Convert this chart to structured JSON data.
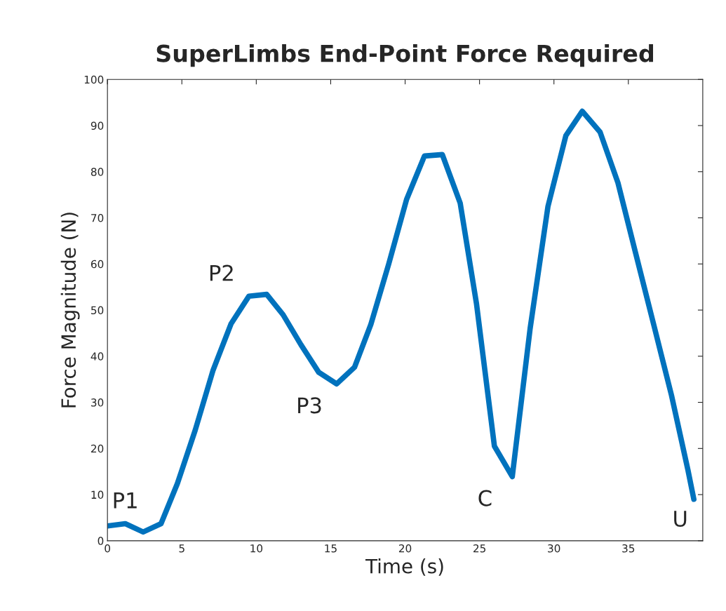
{
  "chart_data": {
    "type": "line",
    "title": "SuperLimbs End-Point Force Required",
    "xlabel": "Time (s)",
    "ylabel": "Force Magnitude (N)",
    "x": [
      0,
      1.2,
      2.4,
      3.6,
      4.7,
      5.9,
      7.1,
      8.3,
      9.5,
      10.7,
      11.8,
      13,
      14.2,
      15.4,
      16.6,
      17.7,
      18.9,
      20.1,
      21.3,
      22.5,
      23.7,
      24.8,
      26,
      27.2,
      28.4,
      29.6,
      30.8,
      31.9,
      33.1,
      34.3,
      35.5,
      36.7,
      37.9,
      39,
      39.4
    ],
    "series": [
      {
        "color": "#0072bd",
        "values": [
          3.2,
          3.7,
          1.9,
          3.7,
          12.4,
          24,
          37,
          47,
          53,
          53.4,
          49,
          42.5,
          36.5,
          34,
          37.6,
          46.9,
          60,
          74,
          83.4,
          83.7,
          73.2,
          51.3,
          20.5,
          13.9,
          46,
          72.5,
          87.8,
          93.1,
          88.6,
          77.6,
          62.2,
          46.9,
          31.5,
          15.4,
          9
        ]
      }
    ],
    "xlim": [
      0,
      40
    ],
    "xticks": [
      0,
      5,
      10,
      15,
      20,
      25,
      30,
      35
    ],
    "ylim": [
      0,
      100
    ],
    "yticks": [
      0,
      10,
      20,
      30,
      40,
      50,
      60,
      70,
      80,
      90,
      100
    ],
    "grid": false,
    "marker": "none",
    "line_style": "solid",
    "annotations": [
      {
        "text": "P1",
        "x": 1.2,
        "y": 3.7
      },
      {
        "text": "P2",
        "x": 9.5,
        "y": 53
      },
      {
        "text": "P3",
        "x": 15.4,
        "y": 34
      },
      {
        "text": "C",
        "x": 27.2,
        "y": 13.9
      },
      {
        "text": "U",
        "x": 39.4,
        "y": 9
      }
    ]
  }
}
